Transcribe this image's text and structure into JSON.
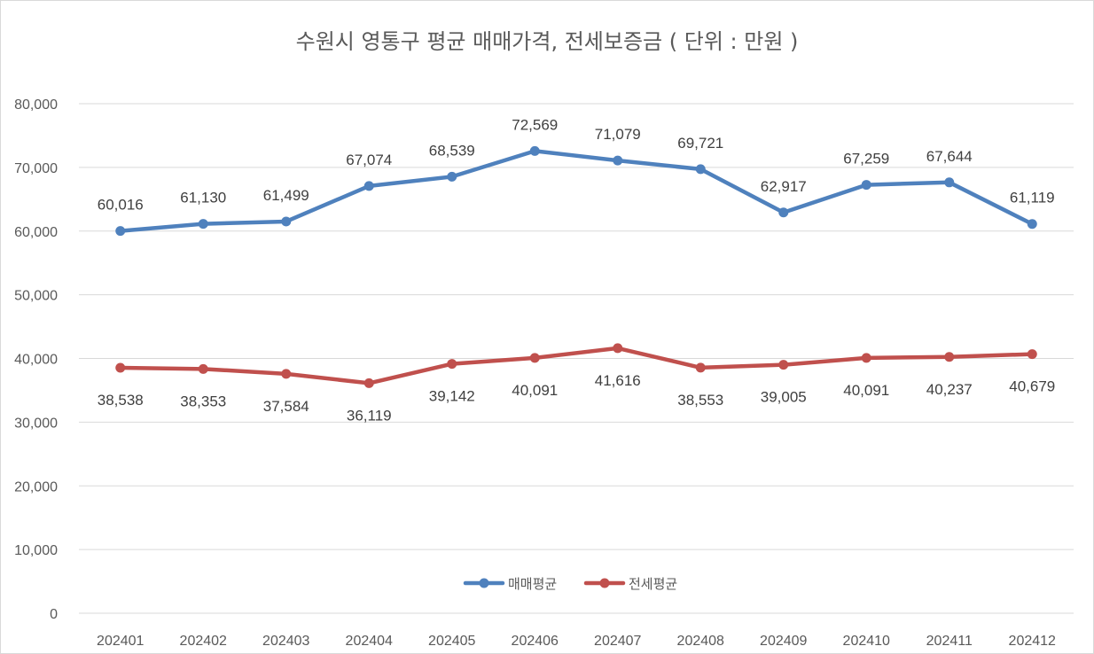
{
  "chart_data": {
    "type": "line",
    "title": "수원시 영통구 평균 매매가격, 전세보증금 ( 단위 : 만원 )",
    "xlabel": "",
    "ylabel": "",
    "ylim": [
      0,
      80000
    ],
    "yticks": [
      0,
      10000,
      20000,
      30000,
      40000,
      50000,
      60000,
      70000,
      80000
    ],
    "ytick_labels": [
      "0",
      "10,000",
      "20,000",
      "30,000",
      "40,000",
      "50,000",
      "60,000",
      "70,000",
      "80,000"
    ],
    "categories": [
      "202401",
      "202402",
      "202403",
      "202404",
      "202405",
      "202406",
      "202407",
      "202408",
      "202409",
      "202410",
      "202411",
      "202412"
    ],
    "grid": true,
    "legend_position": "bottom",
    "series": [
      {
        "name": "매매평균",
        "color": "#4f81bd",
        "label_position": "above",
        "values": [
          60016,
          61130,
          61499,
          67074,
          68539,
          72569,
          71079,
          69721,
          62917,
          67259,
          67644,
          61119
        ],
        "labels": [
          "60,016",
          "61,130",
          "61,499",
          "67,074",
          "68,539",
          "72,569",
          "71,079",
          "69,721",
          "62,917",
          "67,259",
          "67,644",
          "61,119"
        ]
      },
      {
        "name": "전세평균",
        "color": "#c0504d",
        "label_position": "below",
        "values": [
          38538,
          38353,
          37584,
          36119,
          39142,
          40091,
          41616,
          38553,
          39005,
          40091,
          40237,
          40679
        ],
        "labels": [
          "38,538",
          "38,353",
          "37,584",
          "36,119",
          "39,142",
          "40,091",
          "41,616",
          "38,553",
          "39,005",
          "40,091",
          "40,237",
          "40,679"
        ]
      }
    ]
  }
}
